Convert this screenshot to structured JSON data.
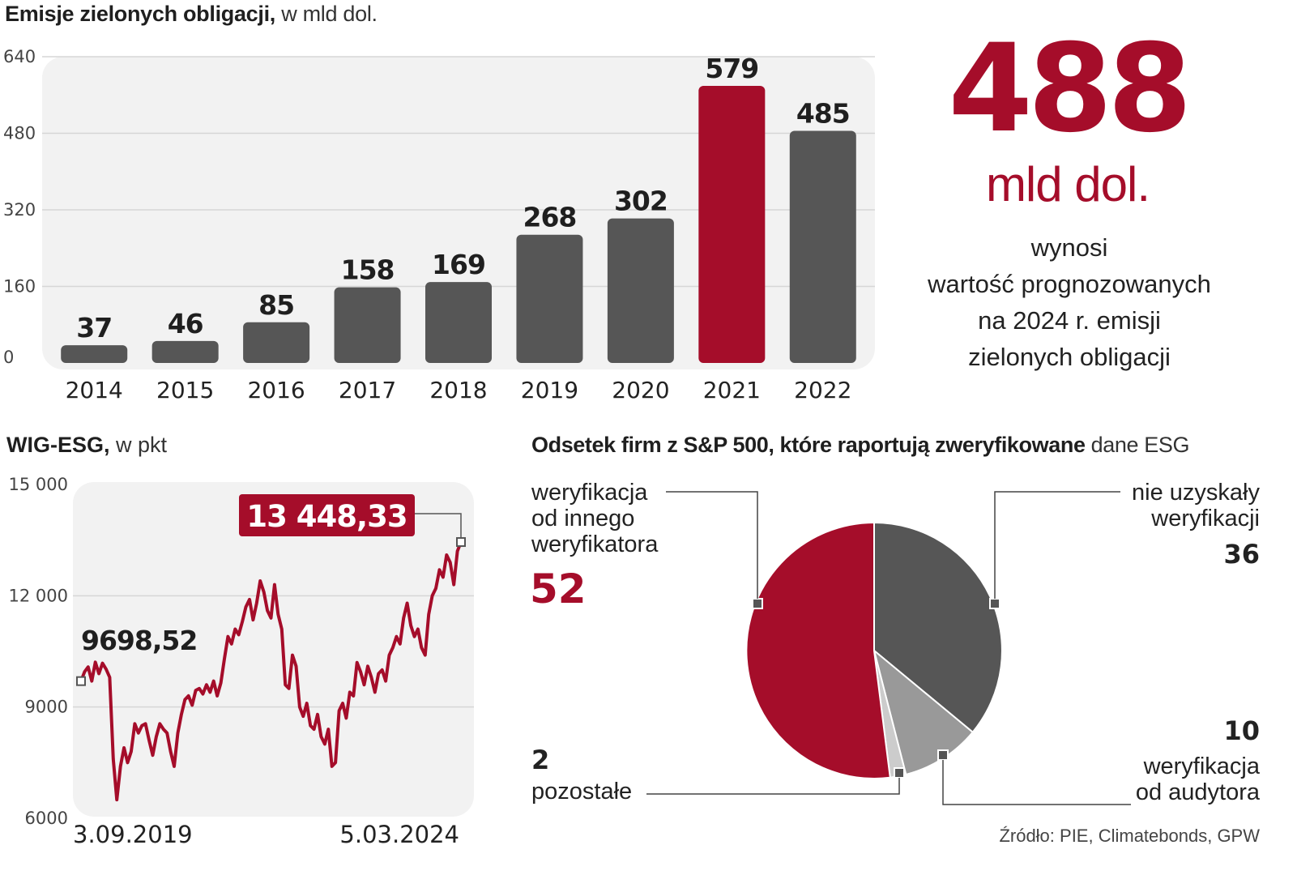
{
  "colors": {
    "accent": "#a50d2a",
    "bar": "#565656",
    "panel": "#f2f2f2",
    "pie_gray_dark": "#565656",
    "pie_gray_mid": "#999999",
    "pie_gray_light": "#cccccc"
  },
  "bar_panel": {
    "title_bold": "Emisje zielonych obligacji,",
    "title_light": " w mld dol."
  },
  "highlight": {
    "value": "488",
    "unit": "mld dol.",
    "line1": "wynosi",
    "line2": "wartość prognozowanych",
    "line3": "na 2024 r. emisji",
    "line4": "zielonych obligacji"
  },
  "line_panel": {
    "title_bold": "WIG-ESG,",
    "title_light": " w pkt",
    "start_label": "9698,52",
    "end_label": "13 448,33",
    "date_start": "3.09.2019",
    "date_end": "5.03.2024"
  },
  "pie_panel": {
    "title_bold": "Odsetek firm z S&P 500, które raportują zweryfikowane",
    "title_light": " dane ESG",
    "label_other_verifier_1": "weryfikacja",
    "label_other_verifier_2": "od innego",
    "label_other_verifier_3": "weryfikatora",
    "value_other_verifier": "52",
    "label_none_1": "nie uzyskały",
    "label_none_2": "weryfikacji",
    "value_none": "36",
    "value_auditor": "10",
    "label_auditor_1": "weryfikacja",
    "label_auditor_2": "od audytora",
    "value_rest": "2",
    "label_rest": "pozostałe"
  },
  "source": "Źródło: PIE, Climatebonds, GPW",
  "chart_data": [
    {
      "type": "bar",
      "title": "Emisje zielonych obligacji, w mld dol.",
      "categories": [
        "2014",
        "2015",
        "2016",
        "2017",
        "2018",
        "2019",
        "2020",
        "2021",
        "2022"
      ],
      "values": [
        37,
        46,
        85,
        158,
        169,
        268,
        302,
        579,
        485
      ],
      "value_labels": [
        "37",
        "46",
        "85",
        "158",
        "169",
        "268",
        "302",
        "579",
        "485"
      ],
      "highlight_index": 7,
      "ylim": [
        0,
        640
      ],
      "yticks": [
        0,
        160,
        320,
        480,
        640
      ],
      "ytick_labels": [
        "0",
        "160",
        "320",
        "480",
        "640"
      ]
    },
    {
      "type": "line",
      "title": "WIG-ESG, w pkt",
      "ylim": [
        6000,
        15000
      ],
      "yticks": [
        6000,
        9000,
        12000,
        15000
      ],
      "ytick_labels": [
        "6000",
        "9000",
        "12 000",
        "15 000"
      ],
      "x_start": "3.09.2019",
      "x_end": "5.03.2024",
      "start_value": 9698.52,
      "end_value": 13448.33,
      "values": [
        9698,
        9950,
        10080,
        9700,
        10210,
        9900,
        10180,
        10020,
        9800,
        7600,
        6500,
        7400,
        7900,
        7500,
        7800,
        8550,
        8300,
        8500,
        8550,
        8100,
        7700,
        8200,
        8550,
        8400,
        8300,
        7800,
        7400,
        8300,
        8800,
        9200,
        9300,
        9050,
        9450,
        9500,
        9350,
        9600,
        9400,
        9700,
        9300,
        9650,
        10300,
        10900,
        10700,
        11100,
        10950,
        11300,
        11700,
        11900,
        11350,
        11800,
        12400,
        12100,
        11600,
        11400,
        12300,
        11500,
        11100,
        9600,
        9500,
        10400,
        10100,
        9000,
        8750,
        9100,
        8500,
        8400,
        8800,
        8200,
        8000,
        8400,
        7400,
        7500,
        8900,
        9100,
        8700,
        9400,
        9300,
        10200,
        9950,
        9600,
        10100,
        9800,
        9400,
        9900,
        10000,
        9700,
        10400,
        10600,
        10900,
        10700,
        11400,
        11800,
        11200,
        10900,
        11100,
        10600,
        10400,
        11500,
        12000,
        12200,
        12700,
        12500,
        13100,
        12900,
        12300,
        13200,
        13448
      ]
    },
    {
      "type": "pie",
      "title": "Odsetek firm z S&P 500, które raportują zweryfikowane dane ESG",
      "labels": [
        "nie uzyskały weryfikacji",
        "weryfikacja od audytora",
        "pozostałe",
        "weryfikacja od innego weryfikatora"
      ],
      "values": [
        36,
        10,
        2,
        52
      ],
      "colors": [
        "#565656",
        "#999999",
        "#cccccc",
        "#a50d2a"
      ]
    }
  ]
}
